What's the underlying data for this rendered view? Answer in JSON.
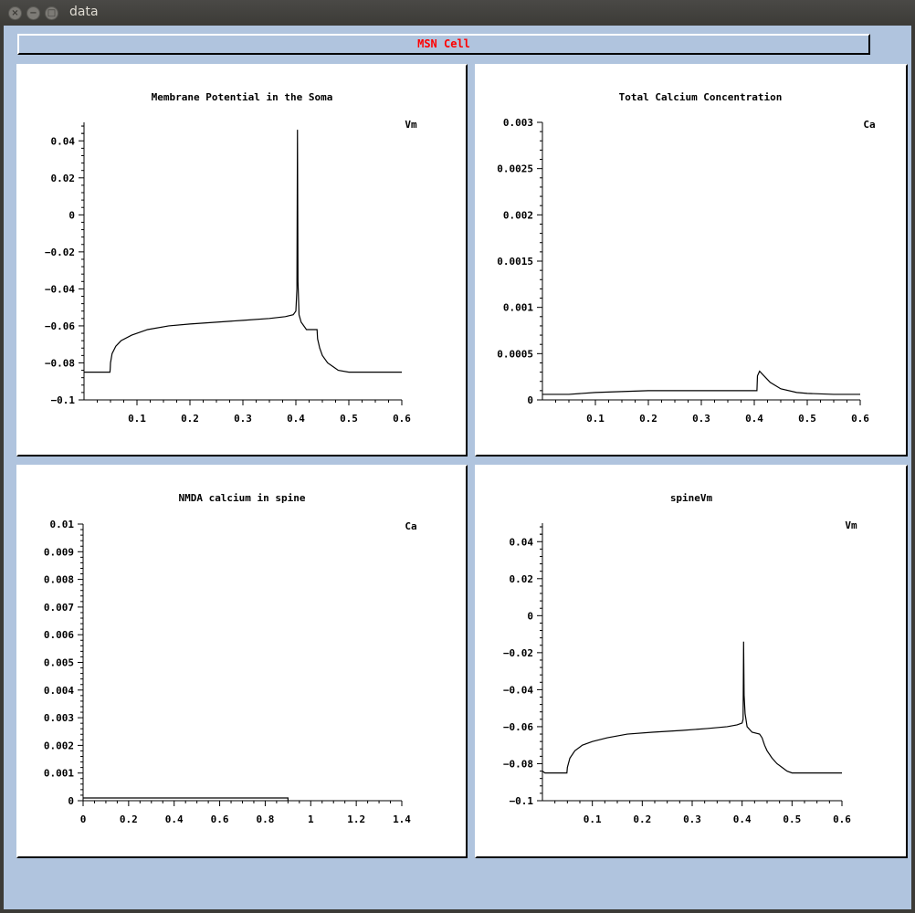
{
  "window": {
    "title": "data",
    "buttons": [
      "close",
      "minimize",
      "maximize"
    ]
  },
  "header": {
    "title": "MSN Cell",
    "title_color": "#ff0000"
  },
  "colors": {
    "background": "#b0c4de",
    "plot_background": "#ffffff",
    "trace": "#000000"
  },
  "chart_data": [
    {
      "id": "soma",
      "type": "line",
      "title": "Membrane Potential in the Soma",
      "legend": "Vm",
      "legend_position": "top-right",
      "grid": false,
      "xlim": [
        0.0,
        0.6
      ],
      "ylim": [
        -0.1,
        0.05
      ],
      "xticks": [
        0.1,
        0.2,
        0.3,
        0.4,
        0.5,
        0.6
      ],
      "xtick_labels": [
        "0.1",
        "0.2",
        "0.3",
        "0.4",
        "0.5",
        "0.6"
      ],
      "yticks": [
        -0.1,
        -0.08,
        -0.06,
        -0.04,
        -0.02,
        0,
        0.02,
        0.04
      ],
      "ytick_labels": [
        "−0.1",
        "−0.08",
        "−0.06",
        "−0.04",
        "−0.02",
        "0",
        "0.02",
        "0.04"
      ],
      "series": [
        {
          "x": [
            0.0,
            0.049,
            0.0495,
            0.05,
            0.053,
            0.06,
            0.07,
            0.09,
            0.12,
            0.16,
            0.2,
            0.25,
            0.3,
            0.35,
            0.38,
            0.395,
            0.4,
            0.402,
            0.403,
            0.404,
            0.406,
            0.41,
            0.42,
            0.44,
            0.441,
            0.445,
            0.45,
            0.46,
            0.47,
            0.48,
            0.5,
            0.55,
            0.6
          ],
          "y": [
            -0.085,
            -0.085,
            -0.083,
            -0.08,
            -0.075,
            -0.071,
            -0.068,
            -0.065,
            -0.062,
            -0.06,
            -0.059,
            -0.058,
            -0.057,
            -0.056,
            -0.055,
            -0.054,
            -0.052,
            -0.04,
            0.046,
            -0.036,
            -0.054,
            -0.058,
            -0.062,
            -0.062,
            -0.067,
            -0.072,
            -0.076,
            -0.08,
            -0.082,
            -0.084,
            -0.085,
            -0.085,
            -0.085
          ]
        }
      ]
    },
    {
      "id": "calcium",
      "type": "line",
      "title": "Total Calcium Concentration",
      "legend": "Ca",
      "legend_position": "top-right",
      "grid": false,
      "xlim": [
        0.0,
        0.6
      ],
      "ylim": [
        0,
        0.003
      ],
      "xticks": [
        0.1,
        0.2,
        0.3,
        0.4,
        0.5,
        0.6
      ],
      "xtick_labels": [
        "0.1",
        "0.2",
        "0.3",
        "0.4",
        "0.5",
        "0.6"
      ],
      "yticks": [
        0,
        0.0005,
        0.001,
        0.0015,
        0.002,
        0.0025,
        0.003
      ],
      "ytick_labels": [
        "0",
        "0.0005",
        "0.001",
        "0.0015",
        "0.002",
        "0.0025",
        "0.003"
      ],
      "series": [
        {
          "x": [
            0.0,
            0.05,
            0.1,
            0.15,
            0.2,
            0.25,
            0.3,
            0.35,
            0.4,
            0.405,
            0.406,
            0.41,
            0.42,
            0.43,
            0.45,
            0.48,
            0.5,
            0.55,
            0.6
          ],
          "y": [
            6e-05,
            6e-05,
            8e-05,
            9e-05,
            0.0001,
            0.0001,
            0.0001,
            0.0001,
            0.0001,
            0.0001,
            0.00026,
            0.00031,
            0.00025,
            0.00019,
            0.00012,
            8e-05,
            7e-05,
            6e-05,
            6e-05
          ]
        }
      ]
    },
    {
      "id": "nmda",
      "type": "line",
      "title": "NMDA calcium in spine",
      "legend": "Ca",
      "legend_position": "top-right",
      "grid": false,
      "xlim": [
        0,
        1.4
      ],
      "ylim": [
        0,
        0.01
      ],
      "xticks": [
        0,
        0.2,
        0.4,
        0.6,
        0.8,
        1,
        1.2,
        1.4
      ],
      "xtick_labels": [
        "0",
        "0.2",
        "0.4",
        "0.6",
        "0.8",
        "1",
        "1.2",
        "1.4"
      ],
      "yticks": [
        0,
        0.001,
        0.002,
        0.003,
        0.004,
        0.005,
        0.006,
        0.007,
        0.008,
        0.009,
        0.01
      ],
      "ytick_labels": [
        "0",
        "0.001",
        "0.002",
        "0.003",
        "0.004",
        "0.005",
        "0.006",
        "0.007",
        "0.008",
        "0.009",
        "0.01"
      ],
      "series": [
        {
          "x": [
            0,
            0.9,
            0.9
          ],
          "y": [
            0.0001,
            0.0001,
            0
          ]
        }
      ]
    },
    {
      "id": "spine",
      "type": "line",
      "title": "spineVm",
      "legend": "Vm",
      "legend_position": "top-right",
      "grid": false,
      "xlim": [
        0.0,
        0.6
      ],
      "ylim": [
        -0.1,
        0.05
      ],
      "xticks": [
        0.1,
        0.2,
        0.3,
        0.4,
        0.5,
        0.6
      ],
      "xtick_labels": [
        "0.1",
        "0.2",
        "0.3",
        "0.4",
        "0.5",
        "0.6"
      ],
      "yticks": [
        -0.1,
        -0.08,
        -0.06,
        -0.04,
        -0.02,
        0,
        0.02,
        0.04
      ],
      "ytick_labels": [
        "−0.1",
        "−0.08",
        "−0.06",
        "−0.04",
        "−0.02",
        "0",
        "0.02",
        "0.04"
      ],
      "series": [
        {
          "x": [
            0.0,
            0.005,
            0.049,
            0.05,
            0.055,
            0.065,
            0.08,
            0.1,
            0.13,
            0.17,
            0.22,
            0.28,
            0.33,
            0.37,
            0.39,
            0.4,
            0.402,
            0.403,
            0.404,
            0.406,
            0.41,
            0.42,
            0.435,
            0.44,
            0.445,
            0.45,
            0.46,
            0.47,
            0.48,
            0.49,
            0.5,
            0.55,
            0.6
          ],
          "y": [
            -0.084,
            -0.085,
            -0.085,
            -0.082,
            -0.077,
            -0.073,
            -0.07,
            -0.068,
            -0.066,
            -0.064,
            -0.063,
            -0.062,
            -0.061,
            -0.06,
            -0.059,
            -0.058,
            -0.056,
            -0.014,
            -0.043,
            -0.053,
            -0.06,
            -0.063,
            -0.064,
            -0.066,
            -0.07,
            -0.073,
            -0.077,
            -0.08,
            -0.082,
            -0.084,
            -0.085,
            -0.085,
            -0.085
          ]
        }
      ]
    }
  ]
}
